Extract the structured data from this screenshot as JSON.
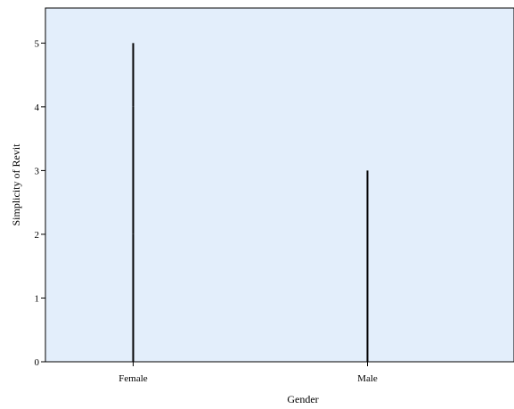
{
  "chart_data": {
    "type": "bar",
    "title": "",
    "xlabel": "Gender",
    "ylabel": "Simplicity of Revit",
    "categories": [
      "Female",
      "Male"
    ],
    "ylim": [
      0,
      5.55
    ],
    "yticks": [
      0,
      1,
      2,
      3,
      4,
      5
    ],
    "series": [
      {
        "values": [
          5,
          3
        ]
      }
    ],
    "segments": [
      {
        "category": "Female",
        "y_from": 0,
        "y_to": 2
      },
      {
        "category": "Female",
        "y_from": 2,
        "y_to": 4
      },
      {
        "category": "Female",
        "y_from": 4,
        "y_to": 5
      },
      {
        "category": "Male",
        "y_from": 0,
        "y_to": 3
      }
    ],
    "grid": false,
    "legend": "none",
    "colors": {
      "plot_background": "#e3eefb",
      "bar": "#000000",
      "axis": "#000000"
    }
  }
}
